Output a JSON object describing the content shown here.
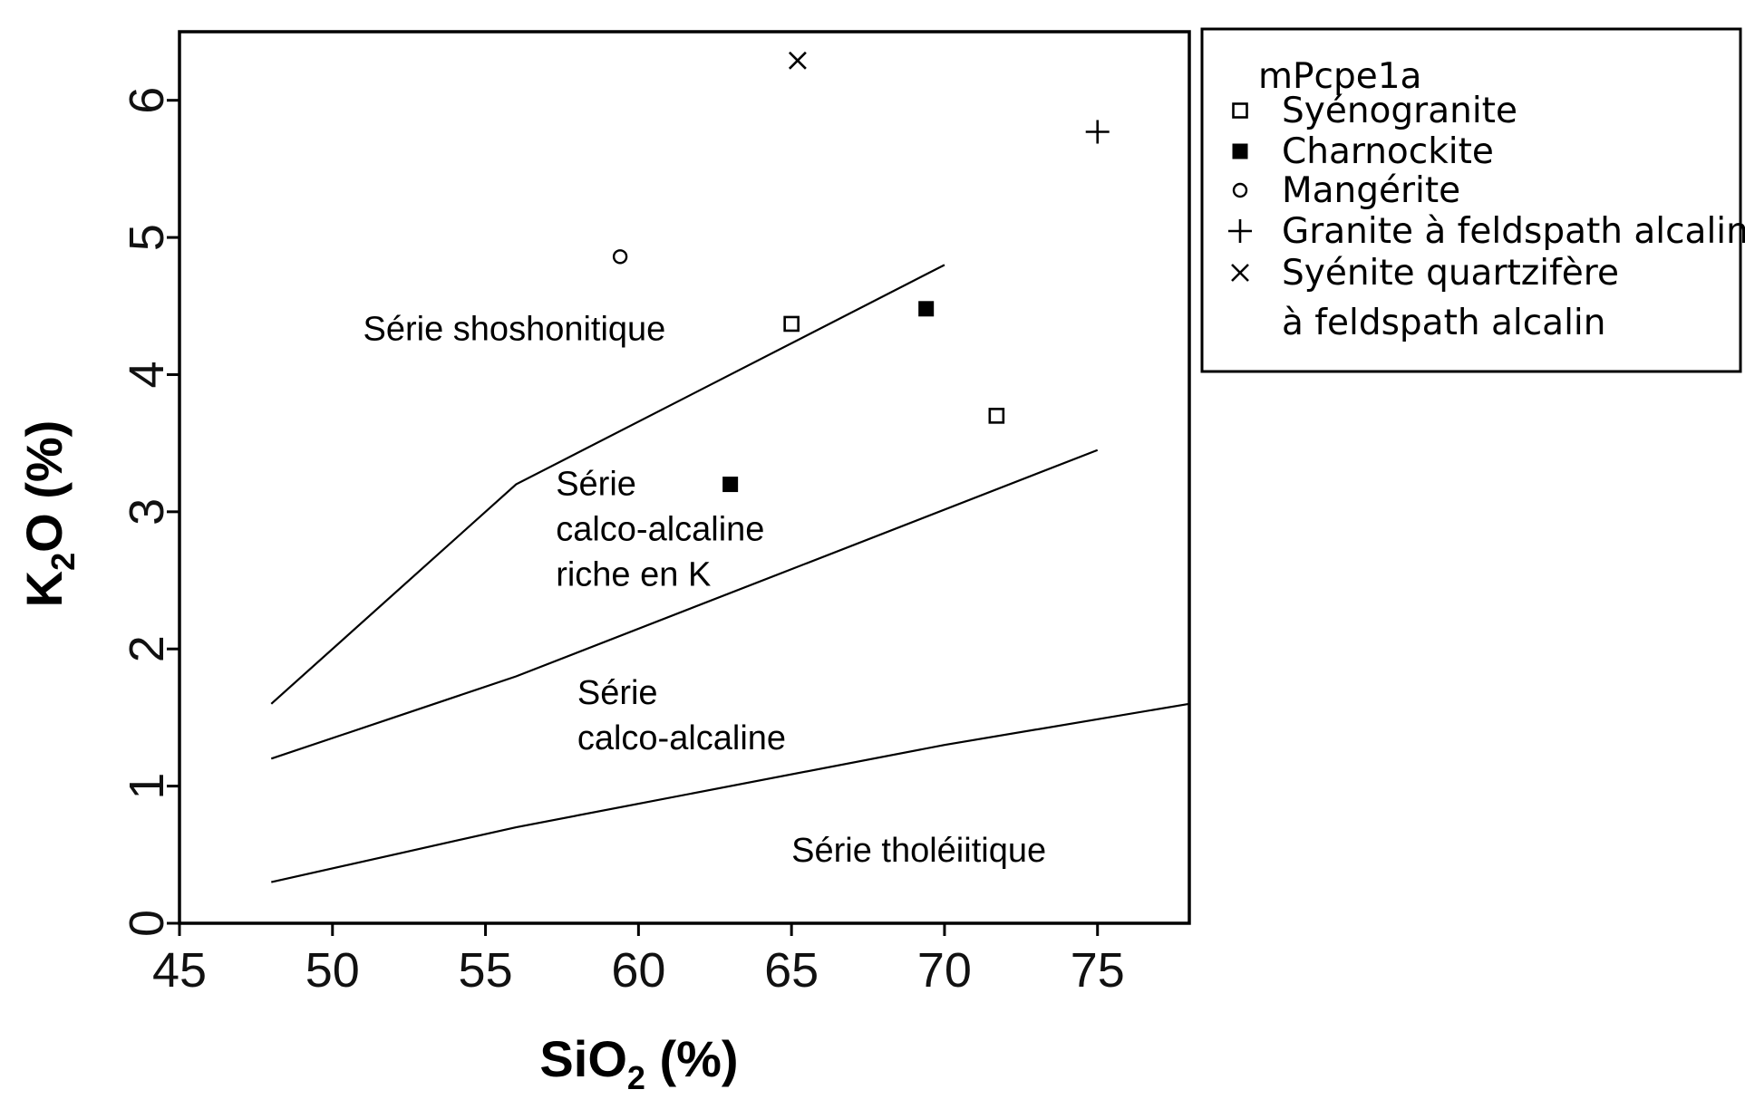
{
  "chart_data": {
    "type": "scatter",
    "xlabel": {
      "pre": "SiO",
      "sub": "2",
      "post": " (%)"
    },
    "ylabel": {
      "pre": "K",
      "sub": "2",
      "post": "O (%)"
    },
    "xlim": [
      45,
      78
    ],
    "ylim": [
      0,
      6.5
    ],
    "xticks": [
      "45",
      "50",
      "55",
      "60",
      "65",
      "70",
      "75"
    ],
    "yticks": [
      "0",
      "1",
      "2",
      "3",
      "4",
      "5",
      "6"
    ],
    "grid": false,
    "legend_position": "outside-top-right",
    "legend_title": "mPcpe1a",
    "boundaries": [
      {
        "points": [
          [
            48,
            1.6
          ],
          [
            56,
            3.2
          ],
          [
            70,
            4.8
          ]
        ]
      },
      {
        "points": [
          [
            48,
            1.2
          ],
          [
            52,
            1.5
          ],
          [
            56,
            1.8
          ],
          [
            75,
            3.45
          ]
        ]
      },
      {
        "points": [
          [
            48,
            0.3
          ],
          [
            52,
            0.5
          ],
          [
            56,
            0.7
          ],
          [
            70,
            1.3
          ],
          [
            78,
            1.6
          ]
        ]
      }
    ],
    "fields": [
      {
        "lines": [
          "Série shoshonitique"
        ],
        "x": 51,
        "y": 4.25
      },
      {
        "lines": [
          "Série",
          "calco-alcaline",
          "riche en K"
        ],
        "x": 57.3,
        "y": 3.12
      },
      {
        "lines": [
          "Série",
          "calco-alcaline"
        ],
        "x": 58,
        "y": 1.6
      },
      {
        "lines": [
          "Série tholéiitique"
        ],
        "x": 65,
        "y": 0.45
      }
    ],
    "series": [
      {
        "name": "Syénogranite",
        "marker": "open-square",
        "points": [
          [
            65,
            4.37
          ],
          [
            71.7,
            3.7
          ]
        ]
      },
      {
        "name": "Charnockite",
        "marker": "filled-square",
        "points": [
          [
            69.4,
            4.48
          ],
          [
            63,
            3.2
          ]
        ]
      },
      {
        "name": "Mangérite",
        "marker": "open-circle",
        "points": [
          [
            59.4,
            4.86
          ]
        ]
      },
      {
        "name": "Granite à feldspath alcalin",
        "marker": "plus",
        "points": [
          [
            75,
            5.77
          ]
        ]
      },
      {
        "name": "Syénite quartzifère",
        "name_line2": "à feldspath alcalin",
        "marker": "cross",
        "points": [
          [
            65.2,
            6.29
          ]
        ]
      }
    ]
  }
}
